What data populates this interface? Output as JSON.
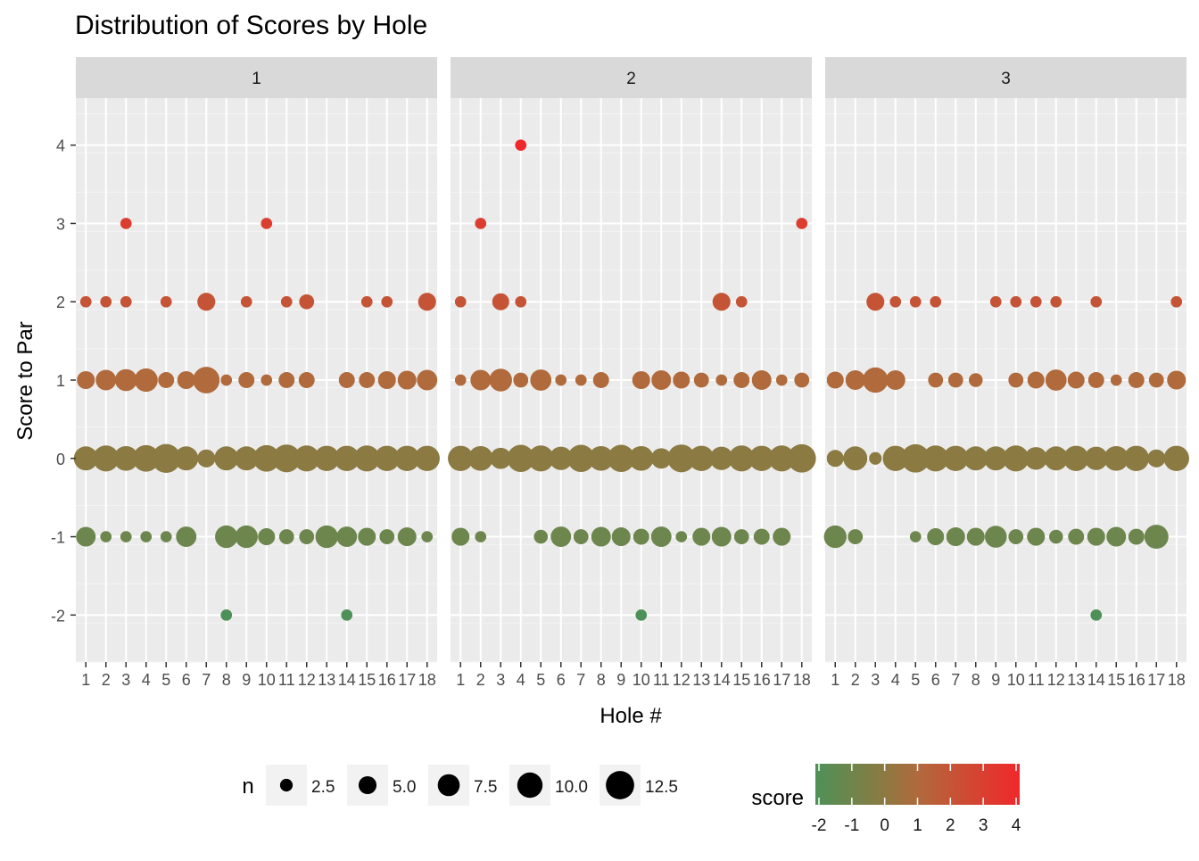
{
  "chart_data": {
    "type": "scatter",
    "title": "Distribution of Scores by Hole",
    "xlabel": "Hole #",
    "ylabel": "Score to Par",
    "x_ticks": [
      "1",
      "2",
      "3",
      "4",
      "5",
      "6",
      "7",
      "8",
      "9",
      "10",
      "11",
      "12",
      "13",
      "14",
      "15",
      "16",
      "17",
      "18"
    ],
    "y_ticks": [
      -2,
      -1,
      0,
      1,
      2,
      3,
      4
    ],
    "ylim": [
      -2.6,
      4.6
    ],
    "xlim": [
      0.5,
      18.5
    ],
    "grid": true,
    "facets": [
      {
        "label": "1",
        "points": [
          {
            "hole": 1,
            "score": 2,
            "n": 2
          },
          {
            "hole": 2,
            "score": 2,
            "n": 2
          },
          {
            "hole": 3,
            "score": 3,
            "n": 2
          },
          {
            "hole": 3,
            "score": 2,
            "n": 2
          },
          {
            "hole": 5,
            "score": 2,
            "n": 2
          },
          {
            "hole": 7,
            "score": 2,
            "n": 5
          },
          {
            "hole": 9,
            "score": 2,
            "n": 2
          },
          {
            "hole": 10,
            "score": 3,
            "n": 2
          },
          {
            "hole": 11,
            "score": 2,
            "n": 2
          },
          {
            "hole": 12,
            "score": 2,
            "n": 3.5
          },
          {
            "hole": 15,
            "score": 2,
            "n": 2
          },
          {
            "hole": 16,
            "score": 2,
            "n": 2
          },
          {
            "hole": 18,
            "score": 2,
            "n": 5
          },
          {
            "hole": 1,
            "score": 1,
            "n": 5
          },
          {
            "hole": 2,
            "score": 1,
            "n": 6.5
          },
          {
            "hole": 3,
            "score": 1,
            "n": 7.5
          },
          {
            "hole": 4,
            "score": 1,
            "n": 8.5
          },
          {
            "hole": 5,
            "score": 1,
            "n": 4
          },
          {
            "hole": 6,
            "score": 1,
            "n": 5
          },
          {
            "hole": 7,
            "score": 1,
            "n": 11
          },
          {
            "hole": 8,
            "score": 1,
            "n": 2
          },
          {
            "hole": 9,
            "score": 1,
            "n": 4
          },
          {
            "hole": 10,
            "score": 1,
            "n": 2
          },
          {
            "hole": 11,
            "score": 1,
            "n": 4
          },
          {
            "hole": 12,
            "score": 1,
            "n": 4
          },
          {
            "hole": 14,
            "score": 1,
            "n": 4
          },
          {
            "hole": 15,
            "score": 1,
            "n": 4
          },
          {
            "hole": 16,
            "score": 1,
            "n": 5
          },
          {
            "hole": 17,
            "score": 1,
            "n": 5.5
          },
          {
            "hole": 18,
            "score": 1,
            "n": 6.5
          },
          {
            "hole": 1,
            "score": 0,
            "n": 9
          },
          {
            "hole": 2,
            "score": 0,
            "n": 10.5
          },
          {
            "hole": 3,
            "score": 0,
            "n": 9.5
          },
          {
            "hole": 4,
            "score": 0,
            "n": 11
          },
          {
            "hole": 5,
            "score": 0,
            "n": 13
          },
          {
            "hole": 6,
            "score": 0,
            "n": 9
          },
          {
            "hole": 7,
            "score": 0,
            "n": 5
          },
          {
            "hole": 8,
            "score": 0,
            "n": 9
          },
          {
            "hole": 9,
            "score": 0,
            "n": 9
          },
          {
            "hole": 10,
            "score": 0,
            "n": 11
          },
          {
            "hole": 11,
            "score": 0,
            "n": 12
          },
          {
            "hole": 12,
            "score": 0,
            "n": 10.5
          },
          {
            "hole": 13,
            "score": 0,
            "n": 10
          },
          {
            "hole": 14,
            "score": 0,
            "n": 10
          },
          {
            "hole": 15,
            "score": 0,
            "n": 10.5
          },
          {
            "hole": 16,
            "score": 0,
            "n": 10
          },
          {
            "hole": 17,
            "score": 0,
            "n": 10
          },
          {
            "hole": 18,
            "score": 0,
            "n": 10
          },
          {
            "hole": 1,
            "score": -1,
            "n": 6
          },
          {
            "hole": 2,
            "score": -1,
            "n": 2
          },
          {
            "hole": 3,
            "score": -1,
            "n": 2
          },
          {
            "hole": 4,
            "score": -1,
            "n": 2
          },
          {
            "hole": 5,
            "score": -1,
            "n": 2
          },
          {
            "hole": 6,
            "score": -1,
            "n": 6.5
          },
          {
            "hole": 8,
            "score": -1,
            "n": 8
          },
          {
            "hole": 9,
            "score": -1,
            "n": 8
          },
          {
            "hole": 10,
            "score": -1,
            "n": 4.5
          },
          {
            "hole": 11,
            "score": -1,
            "n": 3.5
          },
          {
            "hole": 12,
            "score": -1,
            "n": 3.5
          },
          {
            "hole": 13,
            "score": -1,
            "n": 8
          },
          {
            "hole": 14,
            "score": -1,
            "n": 6.5
          },
          {
            "hole": 15,
            "score": -1,
            "n": 5
          },
          {
            "hole": 16,
            "score": -1,
            "n": 3.5
          },
          {
            "hole": 17,
            "score": -1,
            "n": 5.5
          },
          {
            "hole": 18,
            "score": -1,
            "n": 2
          },
          {
            "hole": 8,
            "score": -2,
            "n": 2
          },
          {
            "hole": 14,
            "score": -2,
            "n": 2
          }
        ]
      },
      {
        "label": "2",
        "points": [
          {
            "hole": 4,
            "score": 4,
            "n": 2
          },
          {
            "hole": 2,
            "score": 3,
            "n": 2
          },
          {
            "hole": 18,
            "score": 3,
            "n": 2
          },
          {
            "hole": 1,
            "score": 2,
            "n": 2
          },
          {
            "hole": 3,
            "score": 2,
            "n": 4.5
          },
          {
            "hole": 4,
            "score": 2,
            "n": 2
          },
          {
            "hole": 14,
            "score": 2,
            "n": 5
          },
          {
            "hole": 15,
            "score": 2,
            "n": 2
          },
          {
            "hole": 1,
            "score": 1,
            "n": 2
          },
          {
            "hole": 2,
            "score": 1,
            "n": 6.5
          },
          {
            "hole": 3,
            "score": 1,
            "n": 8
          },
          {
            "hole": 4,
            "score": 1,
            "n": 3.5
          },
          {
            "hole": 5,
            "score": 1,
            "n": 7
          },
          {
            "hole": 6,
            "score": 1,
            "n": 2
          },
          {
            "hole": 7,
            "score": 1,
            "n": 2
          },
          {
            "hole": 8,
            "score": 1,
            "n": 4
          },
          {
            "hole": 10,
            "score": 1,
            "n": 5
          },
          {
            "hole": 11,
            "score": 1,
            "n": 6
          },
          {
            "hole": 12,
            "score": 1,
            "n": 4.5
          },
          {
            "hole": 13,
            "score": 1,
            "n": 3.5
          },
          {
            "hole": 14,
            "score": 1,
            "n": 2
          },
          {
            "hole": 15,
            "score": 1,
            "n": 4
          },
          {
            "hole": 16,
            "score": 1,
            "n": 6
          },
          {
            "hole": 17,
            "score": 1,
            "n": 2
          },
          {
            "hole": 18,
            "score": 1,
            "n": 3.5
          },
          {
            "hole": 1,
            "score": 0,
            "n": 10
          },
          {
            "hole": 2,
            "score": 0,
            "n": 9.5
          },
          {
            "hole": 3,
            "score": 0,
            "n": 7
          },
          {
            "hole": 4,
            "score": 0,
            "n": 11.5
          },
          {
            "hole": 5,
            "score": 0,
            "n": 10.5
          },
          {
            "hole": 6,
            "score": 0,
            "n": 8.5
          },
          {
            "hole": 7,
            "score": 0,
            "n": 11.5
          },
          {
            "hole": 8,
            "score": 0,
            "n": 9.5
          },
          {
            "hole": 9,
            "score": 0,
            "n": 11.5
          },
          {
            "hole": 10,
            "score": 0,
            "n": 9.5
          },
          {
            "hole": 11,
            "score": 0,
            "n": 6.5
          },
          {
            "hole": 12,
            "score": 0,
            "n": 12
          },
          {
            "hole": 13,
            "score": 0,
            "n": 10
          },
          {
            "hole": 14,
            "score": 0,
            "n": 8.5
          },
          {
            "hole": 15,
            "score": 0,
            "n": 10.5
          },
          {
            "hole": 16,
            "score": 0,
            "n": 10
          },
          {
            "hole": 17,
            "score": 0,
            "n": 10.5
          },
          {
            "hole": 18,
            "score": 0,
            "n": 12.5
          },
          {
            "hole": 1,
            "score": -1,
            "n": 5
          },
          {
            "hole": 2,
            "score": -1,
            "n": 2
          },
          {
            "hole": 5,
            "score": -1,
            "n": 3
          },
          {
            "hole": 6,
            "score": -1,
            "n": 6.5
          },
          {
            "hole": 7,
            "score": -1,
            "n": 3.5
          },
          {
            "hole": 8,
            "score": -1,
            "n": 6
          },
          {
            "hole": 9,
            "score": -1,
            "n": 5.5
          },
          {
            "hole": 10,
            "score": -1,
            "n": 4
          },
          {
            "hole": 11,
            "score": -1,
            "n": 6.5
          },
          {
            "hole": 12,
            "score": -1,
            "n": 2
          },
          {
            "hole": 13,
            "score": -1,
            "n": 5
          },
          {
            "hole": 14,
            "score": -1,
            "n": 6
          },
          {
            "hole": 15,
            "score": -1,
            "n": 3.5
          },
          {
            "hole": 16,
            "score": -1,
            "n": 4
          },
          {
            "hole": 17,
            "score": -1,
            "n": 5
          },
          {
            "hole": 10,
            "score": -2,
            "n": 2
          }
        ]
      },
      {
        "label": "3",
        "points": [
          {
            "hole": 3,
            "score": 2,
            "n": 5
          },
          {
            "hole": 4,
            "score": 2,
            "n": 2
          },
          {
            "hole": 5,
            "score": 2,
            "n": 2
          },
          {
            "hole": 6,
            "score": 2,
            "n": 2
          },
          {
            "hole": 9,
            "score": 2,
            "n": 2
          },
          {
            "hole": 10,
            "score": 2,
            "n": 2
          },
          {
            "hole": 11,
            "score": 2,
            "n": 2
          },
          {
            "hole": 12,
            "score": 2,
            "n": 2
          },
          {
            "hole": 14,
            "score": 2,
            "n": 2
          },
          {
            "hole": 18,
            "score": 2,
            "n": 2
          },
          {
            "hole": 1,
            "score": 1,
            "n": 4.5
          },
          {
            "hole": 2,
            "score": 1,
            "n": 6
          },
          {
            "hole": 3,
            "score": 1,
            "n": 10
          },
          {
            "hole": 4,
            "score": 1,
            "n": 6
          },
          {
            "hole": 6,
            "score": 1,
            "n": 3.5
          },
          {
            "hole": 7,
            "score": 1,
            "n": 3.5
          },
          {
            "hole": 8,
            "score": 1,
            "n": 3
          },
          {
            "hole": 10,
            "score": 1,
            "n": 3.5
          },
          {
            "hole": 11,
            "score": 1,
            "n": 4.5
          },
          {
            "hole": 12,
            "score": 1,
            "n": 7
          },
          {
            "hole": 13,
            "score": 1,
            "n": 4.5
          },
          {
            "hole": 14,
            "score": 1,
            "n": 4
          },
          {
            "hole": 15,
            "score": 1,
            "n": 2
          },
          {
            "hole": 16,
            "score": 1,
            "n": 4
          },
          {
            "hole": 17,
            "score": 1,
            "n": 3.5
          },
          {
            "hole": 18,
            "score": 1,
            "n": 5.5
          },
          {
            "hole": 1,
            "score": 0,
            "n": 4.5
          },
          {
            "hole": 2,
            "score": 0,
            "n": 9
          },
          {
            "hole": 3,
            "score": 0,
            "n": 2.5
          },
          {
            "hole": 4,
            "score": 0,
            "n": 10
          },
          {
            "hole": 5,
            "score": 0,
            "n": 12.5
          },
          {
            "hole": 6,
            "score": 0,
            "n": 10.5
          },
          {
            "hole": 7,
            "score": 0,
            "n": 10
          },
          {
            "hole": 8,
            "score": 0,
            "n": 9
          },
          {
            "hole": 9,
            "score": 0,
            "n": 9
          },
          {
            "hole": 10,
            "score": 0,
            "n": 10.5
          },
          {
            "hole": 11,
            "score": 0,
            "n": 8
          },
          {
            "hole": 12,
            "score": 0,
            "n": 9
          },
          {
            "hole": 13,
            "score": 0,
            "n": 10
          },
          {
            "hole": 14,
            "score": 0,
            "n": 8.5
          },
          {
            "hole": 15,
            "score": 0,
            "n": 9.5
          },
          {
            "hole": 16,
            "score": 0,
            "n": 10
          },
          {
            "hole": 17,
            "score": 0,
            "n": 5
          },
          {
            "hole": 18,
            "score": 0,
            "n": 10
          },
          {
            "hole": 1,
            "score": -1,
            "n": 8
          },
          {
            "hole": 2,
            "score": -1,
            "n": 3.5
          },
          {
            "hole": 5,
            "score": -1,
            "n": 2
          },
          {
            "hole": 6,
            "score": -1,
            "n": 4.5
          },
          {
            "hole": 7,
            "score": -1,
            "n": 5.5
          },
          {
            "hole": 8,
            "score": -1,
            "n": 5
          },
          {
            "hole": 9,
            "score": -1,
            "n": 7.5
          },
          {
            "hole": 10,
            "score": -1,
            "n": 3.5
          },
          {
            "hole": 11,
            "score": -1,
            "n": 5
          },
          {
            "hole": 12,
            "score": -1,
            "n": 3
          },
          {
            "hole": 13,
            "score": -1,
            "n": 4
          },
          {
            "hole": 14,
            "score": -1,
            "n": 5
          },
          {
            "hole": 15,
            "score": -1,
            "n": 6
          },
          {
            "hole": 16,
            "score": -1,
            "n": 4
          },
          {
            "hole": 17,
            "score": -1,
            "n": 9
          },
          {
            "hole": 14,
            "score": -2,
            "n": 2
          }
        ]
      }
    ],
    "size_legend": {
      "title": "n",
      "values": [
        2.5,
        5.0,
        7.5,
        10.0,
        12.5
      ],
      "labels": [
        "2.5",
        "5.0",
        "7.5",
        "10.0",
        "12.5"
      ]
    },
    "color_legend": {
      "title": "score",
      "ticks": [
        "-2",
        "-1",
        "0",
        "1",
        "2",
        "3",
        "4"
      ],
      "range": [
        -2,
        4
      ],
      "colors": [
        "#4e9158",
        "#8b7a42",
        "#b06a3c",
        "#f0282a"
      ]
    },
    "legend_position": "bottom"
  }
}
